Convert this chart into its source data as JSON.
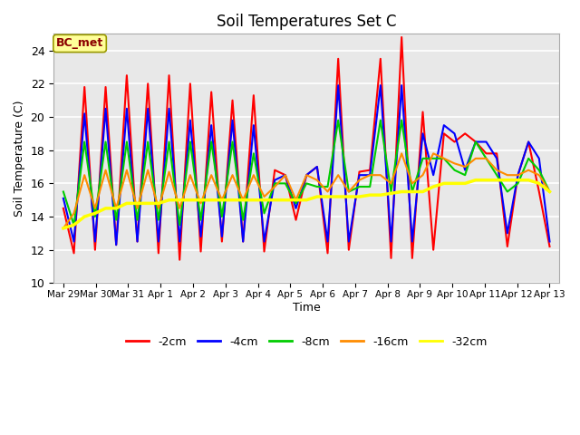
{
  "title": "Soil Temperatures Set C",
  "xlabel": "Time",
  "ylabel": "Soil Temperature (C)",
  "ylim": [
    10,
    25
  ],
  "yticks": [
    10,
    12,
    14,
    16,
    18,
    20,
    22,
    24
  ],
  "x_labels": [
    "Mar 29",
    "Mar 30",
    "Mar 31",
    "Apr 1",
    "Apr 2",
    "Apr 3",
    "Apr 4",
    "Apr 5",
    "Apr 6",
    "Apr 7",
    "Apr 8",
    "Apr 9",
    "Apr 10",
    "Apr 11",
    "Apr 12",
    "Apr 13"
  ],
  "annotation_text": "BC_met",
  "annotation_color": "#8B0000",
  "annotation_bg": "#FFFF99",
  "bg_color": "#E8E8E8",
  "line_colors": {
    "-2cm": "#FF0000",
    "-4cm": "#0000FF",
    "-8cm": "#00CC00",
    "-16cm": "#FF8C00",
    "-32cm": "#FFFF00"
  },
  "series_2cm": [
    14.5,
    11.8,
    21.8,
    12.0,
    21.8,
    12.3,
    22.5,
    12.5,
    22.0,
    11.8,
    22.5,
    11.4,
    22.0,
    11.9,
    21.5,
    12.5,
    21.0,
    12.5,
    21.3,
    11.9,
    16.8,
    16.5,
    13.8,
    16.5,
    17.0,
    11.8,
    23.5,
    12.0,
    16.7,
    16.8,
    23.5,
    11.5,
    24.8,
    11.5,
    20.3,
    12.0,
    19.0,
    18.5,
    19.0,
    18.5,
    17.8,
    17.8,
    12.2,
    16.5,
    18.5,
    15.5,
    12.2
  ],
  "series_4cm": [
    15.1,
    12.5,
    20.2,
    12.5,
    20.5,
    12.3,
    20.5,
    12.5,
    20.5,
    12.5,
    20.5,
    12.5,
    19.8,
    12.8,
    19.5,
    12.8,
    19.8,
    12.5,
    19.5,
    12.5,
    16.2,
    16.5,
    14.5,
    16.5,
    17.0,
    12.5,
    21.9,
    12.5,
    16.5,
    16.5,
    21.9,
    12.5,
    21.9,
    12.5,
    19.0,
    16.5,
    19.5,
    19.0,
    16.8,
    18.5,
    18.5,
    17.5,
    13.0,
    16.5,
    18.5,
    17.5,
    12.5
  ],
  "series_8cm": [
    15.5,
    13.5,
    18.5,
    14.0,
    18.5,
    13.8,
    18.5,
    13.8,
    18.5,
    13.8,
    18.5,
    13.5,
    18.5,
    13.8,
    18.5,
    14.0,
    18.5,
    13.8,
    17.8,
    14.2,
    16.0,
    16.0,
    14.8,
    16.0,
    15.8,
    15.8,
    19.8,
    15.5,
    15.8,
    15.8,
    19.8,
    15.5,
    19.8,
    15.5,
    17.5,
    17.5,
    17.5,
    16.8,
    16.5,
    18.5,
    17.5,
    16.5,
    15.5,
    16.0,
    17.5,
    16.8,
    15.5
  ],
  "series_16cm": [
    13.3,
    14.2,
    16.5,
    14.5,
    16.8,
    14.5,
    16.8,
    14.5,
    16.8,
    14.5,
    16.7,
    14.5,
    16.5,
    14.8,
    16.5,
    15.0,
    16.5,
    15.0,
    16.5,
    15.2,
    15.8,
    16.5,
    15.0,
    16.5,
    16.2,
    15.5,
    16.5,
    15.5,
    16.2,
    16.5,
    16.5,
    16.0,
    17.8,
    16.0,
    16.5,
    17.8,
    17.5,
    17.2,
    17.0,
    17.5,
    17.5,
    16.8,
    16.5,
    16.5,
    16.8,
    16.5,
    15.5
  ],
  "series_32cm": [
    13.3,
    13.5,
    14.0,
    14.2,
    14.5,
    14.5,
    14.8,
    14.8,
    14.8,
    14.8,
    15.0,
    15.0,
    15.0,
    15.0,
    15.0,
    15.0,
    15.0,
    15.0,
    15.0,
    15.0,
    15.0,
    15.0,
    15.0,
    15.0,
    15.2,
    15.2,
    15.2,
    15.2,
    15.2,
    15.3,
    15.3,
    15.4,
    15.5,
    15.5,
    15.5,
    15.8,
    16.0,
    16.0,
    16.0,
    16.2,
    16.2,
    16.2,
    16.2,
    16.2,
    16.2,
    16.0,
    15.5
  ]
}
